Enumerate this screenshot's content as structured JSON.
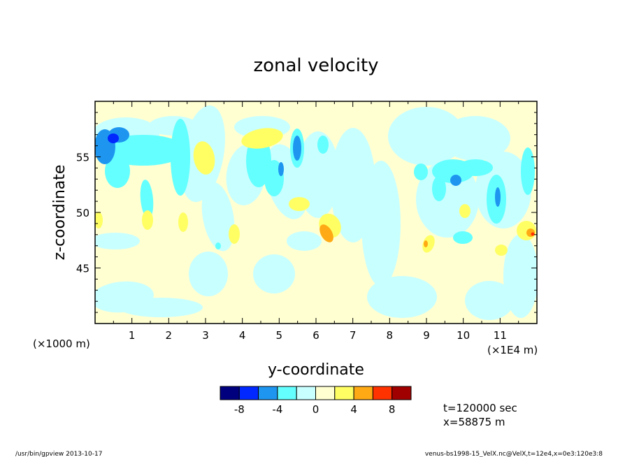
{
  "chart_data": {
    "type": "heatmap",
    "title": "zonal velocity",
    "xlabel": "y-coordinate",
    "ylabel": "z-coordinate",
    "x_unit_left": "(×1000 m)",
    "x_unit_right": "(×1E4 m)",
    "xlim": [
      0,
      12
    ],
    "ylim": [
      40,
      60
    ],
    "xticks": [
      "1",
      "2",
      "3",
      "4",
      "5",
      "6",
      "7",
      "8",
      "9",
      "10",
      "11"
    ],
    "yticks": [
      "45",
      "50",
      "55"
    ],
    "colorbar": {
      "levels": [
        -10,
        -8,
        -6,
        -4,
        -2,
        0,
        2,
        4,
        6,
        8,
        10
      ],
      "colors": [
        "#00007f",
        "#0028ff",
        "#1e96f0",
        "#64ffff",
        "#c8ffff",
        "#ffffd2",
        "#ffff64",
        "#ffaa14",
        "#ff3200",
        "#a00000"
      ],
      "tick_labels": [
        "-8",
        "-4",
        "0",
        "4",
        "8"
      ]
    },
    "info": [
      "t=120000 sec",
      "x=58875 m"
    ],
    "footer_left": "/usr/bin/gpview   2013-10-17",
    "footer_right": "venus-bs1998-15_VelX.nc@VelX,t=12e4,x=0e3:120e3:8"
  }
}
